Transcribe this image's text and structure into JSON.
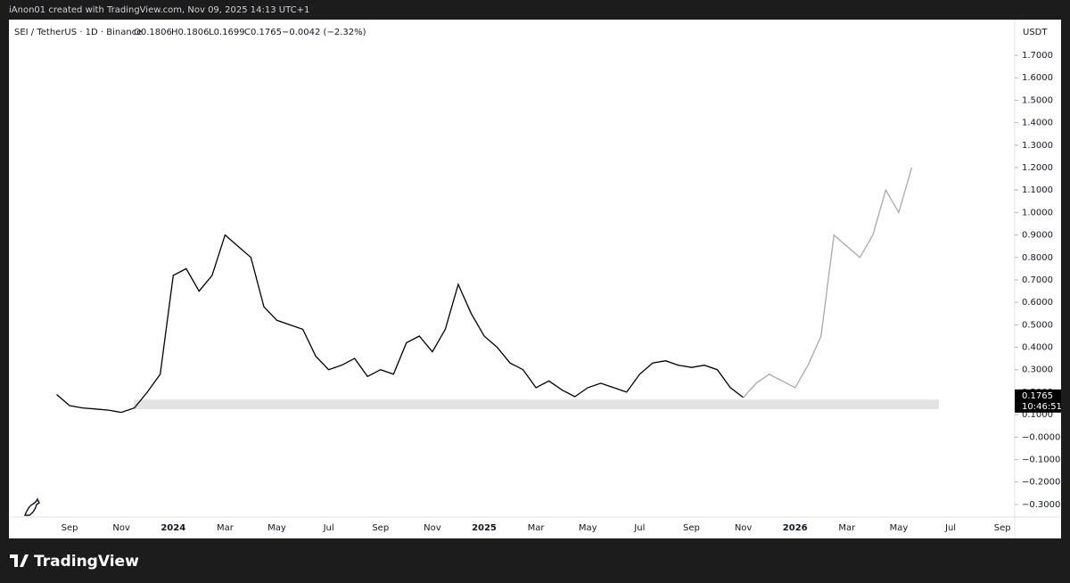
{
  "header": {
    "credit": "iAnon01 created with TradingView.com, Nov 09, 2025 14:13 UTC+1"
  },
  "footer": {
    "brand": "TradingView"
  },
  "chart_data": {
    "type": "line",
    "legend": {
      "symbol": "SEI / TetherUS · 1D · Binance",
      "open": "O0.1806",
      "high": "H0.1806",
      "low": "L0.1699",
      "close": "C0.1765",
      "change": "−0.0042 (−2.32%)"
    },
    "currency": "USDT",
    "last_price": 0.1765,
    "countdown": "10:46:51",
    "support_zone": [
      0.124,
      0.167
    ],
    "categories": [
      null,
      "Sep",
      null,
      null,
      null,
      "Nov",
      null,
      null,
      null,
      "2024",
      null,
      null,
      null,
      "Mar",
      null,
      null,
      null,
      "May",
      null,
      null,
      null,
      "Jul",
      null,
      null,
      null,
      "Sep",
      null,
      null,
      null,
      "Nov",
      null,
      null,
      null,
      "2025",
      null,
      null,
      null,
      "Mar",
      null,
      null,
      null,
      "May",
      null,
      null,
      null,
      "Jul",
      null,
      null,
      null,
      "Sep",
      null,
      null,
      null,
      "Nov",
      null,
      null,
      null,
      "2026",
      null,
      null,
      null,
      "Mar",
      null,
      null,
      null,
      "May",
      null,
      null,
      null,
      "Jul",
      null,
      null,
      null,
      "Sep",
      null,
      null
    ],
    "series": [
      {
        "color": "#000000",
        "values": [
          0.19,
          0.14,
          0.13,
          0.125,
          0.12,
          0.11,
          0.13,
          0.2,
          0.28,
          0.72,
          0.75,
          0.65,
          0.72,
          0.9,
          0.85,
          0.8,
          0.58,
          0.52,
          0.5,
          0.48,
          0.36,
          0.3,
          0.32,
          0.35,
          0.27,
          0.3,
          0.28,
          0.42,
          0.45,
          0.38,
          0.48,
          0.68,
          0.55,
          0.45,
          0.4,
          0.33,
          0.3,
          0.22,
          0.25,
          0.21,
          0.18,
          0.22,
          0.24,
          0.22,
          0.2,
          0.28,
          0.33,
          0.34,
          0.32,
          0.31,
          0.32,
          0.3,
          0.22,
          0.1765,
          null,
          null,
          null,
          null,
          null,
          null,
          null,
          null,
          null,
          null,
          null,
          null,
          null,
          null,
          null,
          null,
          null,
          null,
          null,
          null,
          null,
          null
        ]
      },
      {
        "color": "#a8a8a8",
        "values": [
          null,
          null,
          null,
          null,
          null,
          null,
          null,
          null,
          null,
          null,
          null,
          null,
          null,
          null,
          null,
          null,
          null,
          null,
          null,
          null,
          null,
          null,
          null,
          null,
          null,
          null,
          null,
          null,
          null,
          null,
          null,
          null,
          null,
          null,
          null,
          null,
          null,
          null,
          null,
          null,
          null,
          null,
          null,
          null,
          null,
          null,
          null,
          null,
          null,
          null,
          null,
          null,
          null,
          0.1765,
          0.24,
          0.28,
          0.25,
          0.22,
          0.32,
          0.45,
          0.9,
          0.85,
          0.8,
          0.9,
          1.1,
          1.0,
          1.2,
          null,
          null,
          null,
          null,
          null,
          null,
          null,
          null,
          null
        ]
      }
    ],
    "ylim": [
      -0.356,
      1.859
    ],
    "yticks": [
      {
        "value": 1.7,
        "label": "1.7000"
      },
      {
        "value": 1.6,
        "label": "1.6000"
      },
      {
        "value": 1.5,
        "label": "1.5000"
      },
      {
        "value": 1.4,
        "label": "1.4000"
      },
      {
        "value": 1.3,
        "label": "1.3000"
      },
      {
        "value": 1.2,
        "label": "1.2000"
      },
      {
        "value": 1.1,
        "label": "1.1000"
      },
      {
        "value": 1.0,
        "label": "1.0000"
      },
      {
        "value": 0.9,
        "label": "0.9000"
      },
      {
        "value": 0.8,
        "label": "0.8000"
      },
      {
        "value": 0.7,
        "label": "0.7000"
      },
      {
        "value": 0.6,
        "label": "0.6000"
      },
      {
        "value": 0.5,
        "label": "0.5000"
      },
      {
        "value": 0.4,
        "label": "0.4000"
      },
      {
        "value": 0.3,
        "label": "0.3000"
      },
      {
        "value": 0.2,
        "label": "0.2000"
      },
      {
        "value": 0.1,
        "label": "0.1000"
      },
      {
        "value": 0,
        "label": "−0.0000"
      },
      {
        "value": -0.1,
        "label": "−0.1000"
      },
      {
        "value": -0.2,
        "label": "−0.2000"
      },
      {
        "value": -0.3,
        "label": "−0.3000"
      }
    ],
    "grid": false
  }
}
